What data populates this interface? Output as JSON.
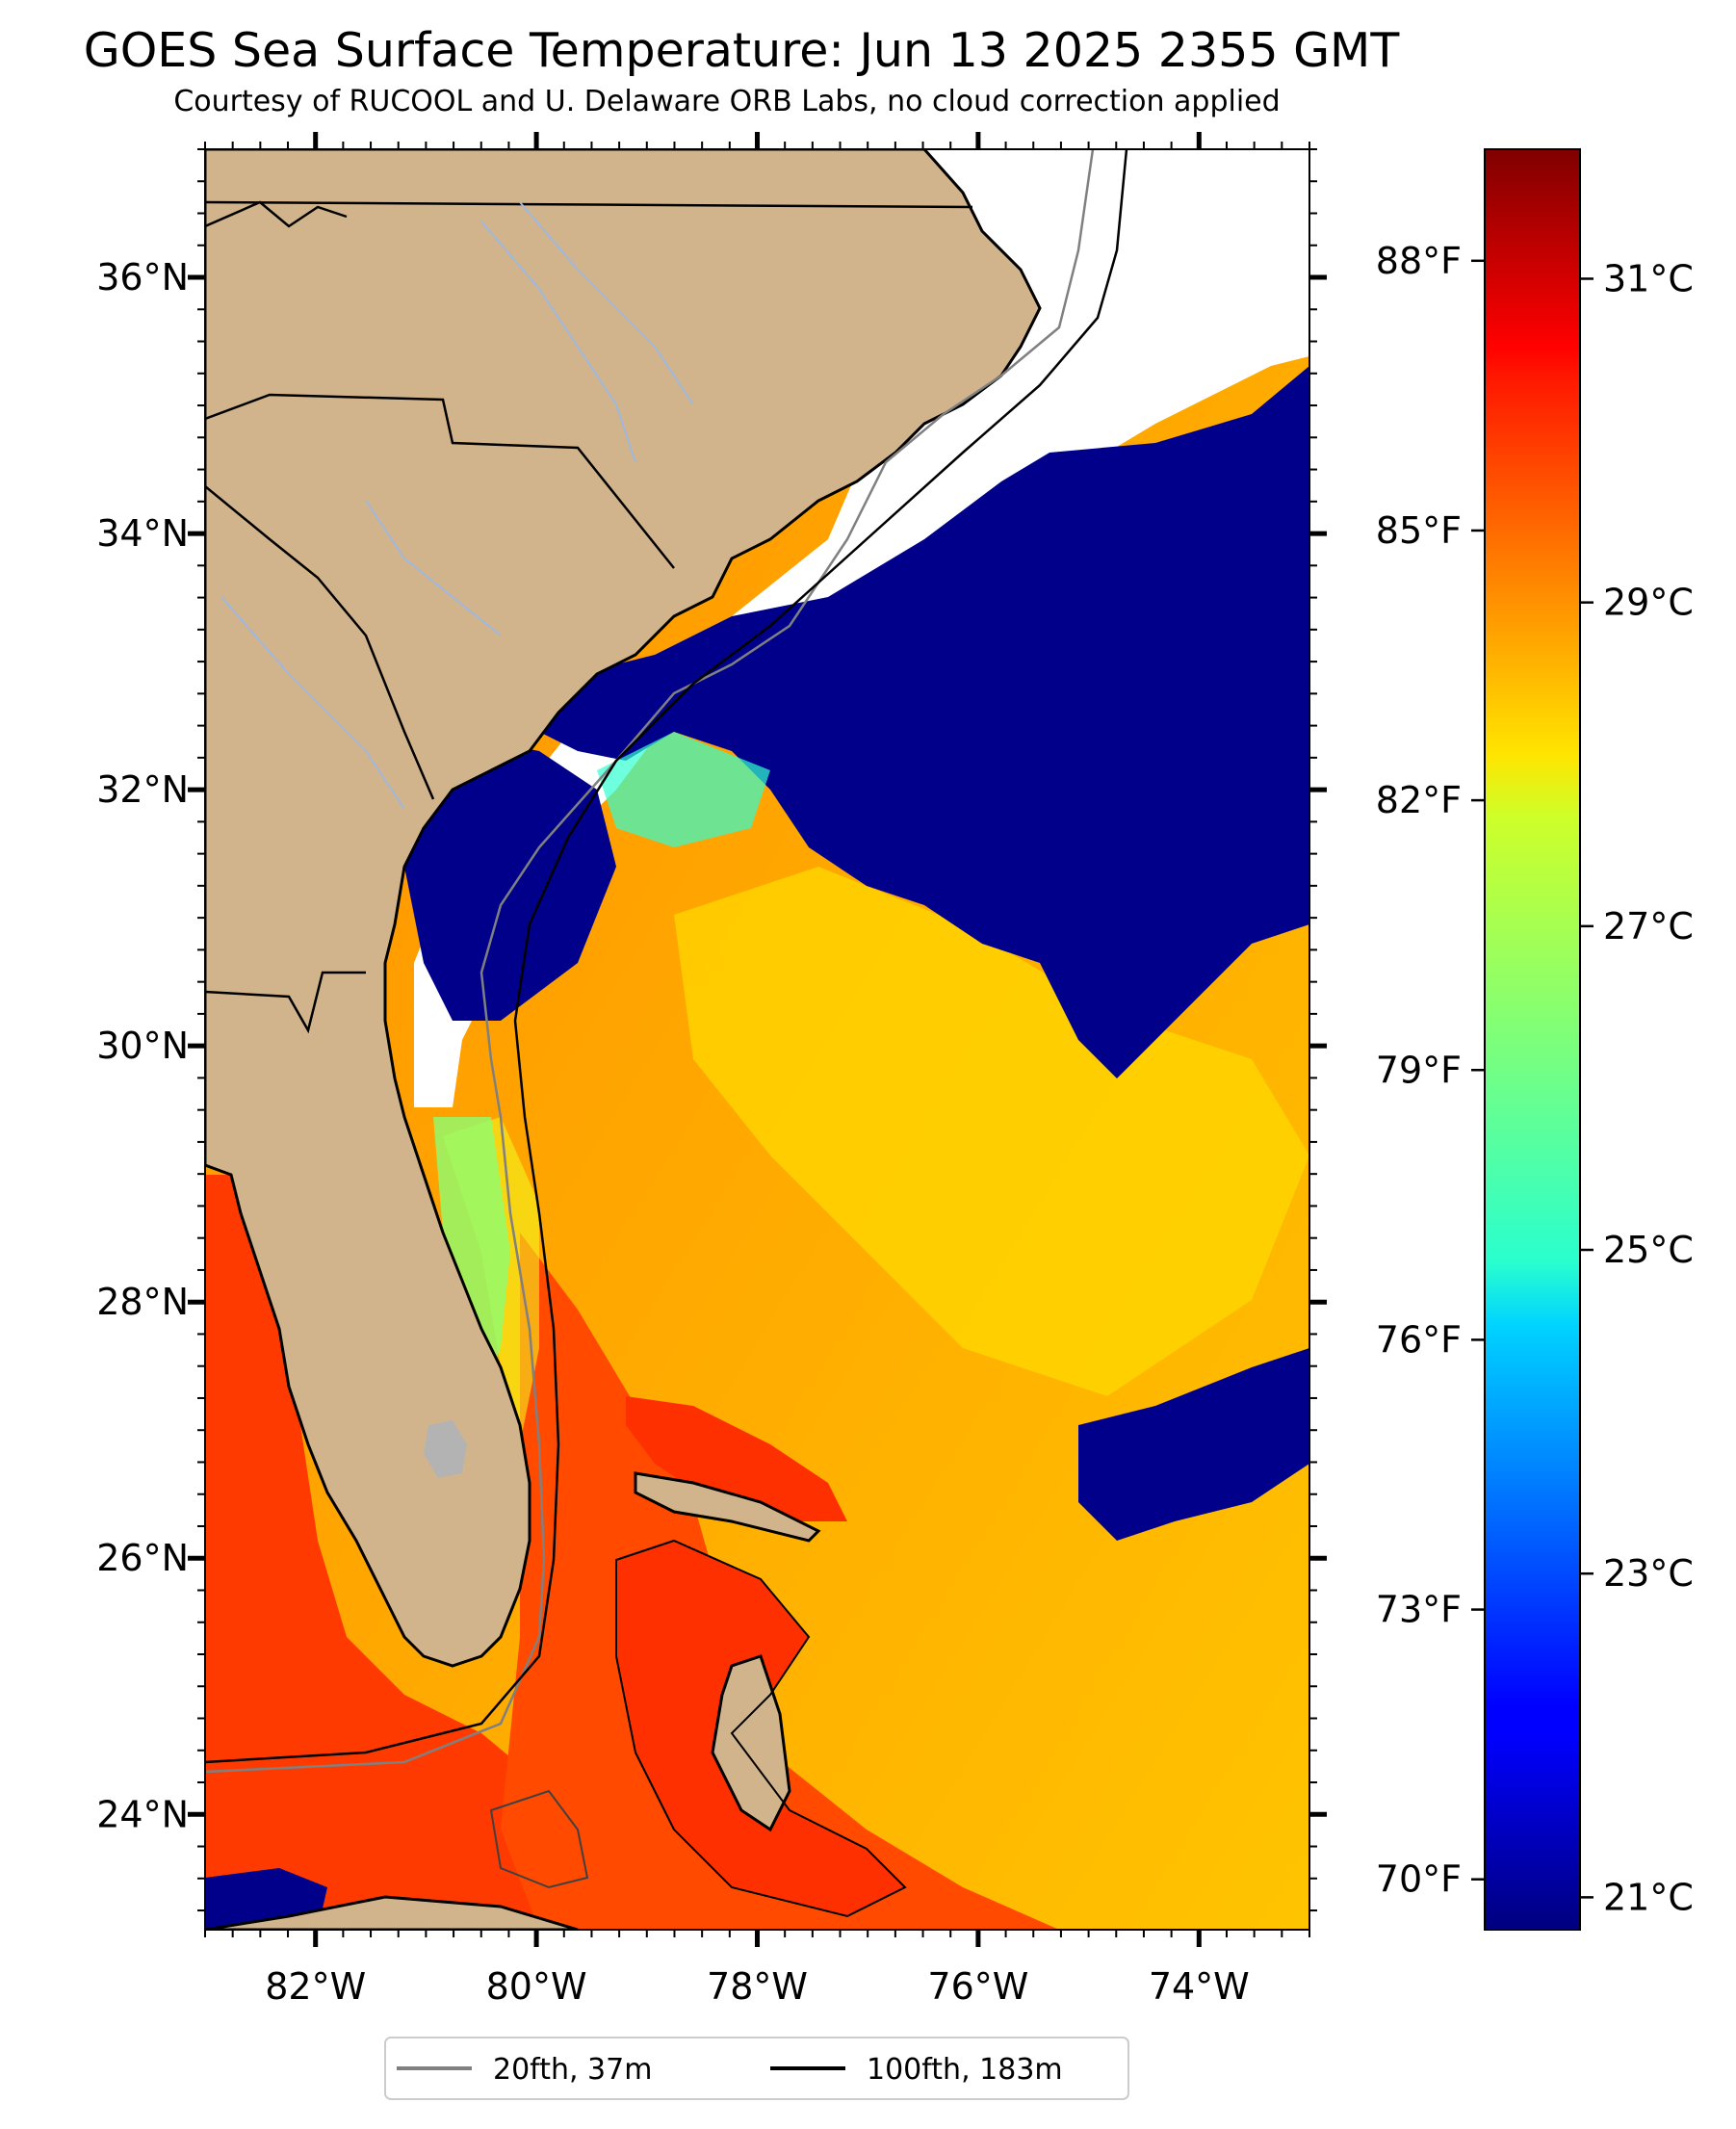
{
  "title": "GOES Sea Surface Temperature: Jun 13 2025 2355 GMT",
  "subtitle": "Courtesy of RUCOOL and U. Delaware ORB Labs, no cloud correction applied",
  "map": {
    "lon_range": [
      -83.0,
      -73.0
    ],
    "lat_range": [
      23.1,
      37.0
    ],
    "lon_ticks": [
      {
        "value": -82,
        "label": "82°W"
      },
      {
        "value": -80,
        "label": "80°W"
      },
      {
        "value": -78,
        "label": "78°W"
      },
      {
        "value": -76,
        "label": "76°W"
      },
      {
        "value": -74,
        "label": "74°W"
      }
    ],
    "lat_ticks": [
      {
        "value": 36,
        "label": "36°N"
      },
      {
        "value": 34,
        "label": "34°N"
      },
      {
        "value": 32,
        "label": "32°N"
      },
      {
        "value": 30,
        "label": "30°N"
      },
      {
        "value": 28,
        "label": "28°N"
      },
      {
        "value": 26,
        "label": "26°N"
      },
      {
        "value": 24,
        "label": "24°N"
      }
    ],
    "colors": {
      "land": "#d2b48c",
      "no_data": "#ffffff",
      "cloud": "#00008b",
      "state_lines": "#000000",
      "rivers": "#9eb8e0",
      "lake": "#b3b3b3"
    }
  },
  "colorbar": {
    "colormap": "jet",
    "celsius_range": [
      20.8,
      31.8
    ],
    "celsius_ticks": [
      {
        "value": 31,
        "label": "31°C"
      },
      {
        "value": 29,
        "label": "29°C"
      },
      {
        "value": 27,
        "label": "27°C"
      },
      {
        "value": 25,
        "label": "25°C"
      },
      {
        "value": 23,
        "label": "23°C"
      },
      {
        "value": 21,
        "label": "21°C"
      }
    ],
    "fahrenheit_ticks": [
      {
        "value": 88,
        "label": "88°F"
      },
      {
        "value": 85,
        "label": "85°F"
      },
      {
        "value": 82,
        "label": "82°F"
      },
      {
        "value": 79,
        "label": "79°F"
      },
      {
        "value": 76,
        "label": "76°F"
      },
      {
        "value": 73,
        "label": "73°F"
      },
      {
        "value": 70,
        "label": "70°F"
      }
    ]
  },
  "legend": {
    "items": [
      {
        "label": "20fth, 37m",
        "color": "#808080"
      },
      {
        "label": "100fth, 183m",
        "color": "#000000"
      }
    ]
  }
}
